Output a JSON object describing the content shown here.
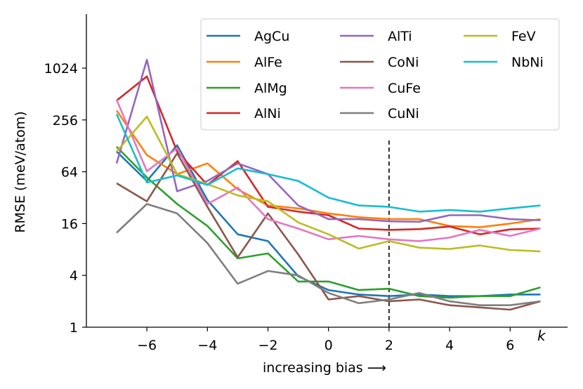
{
  "chart_data": {
    "type": "line",
    "xlabel": "increasing bias ⟶",
    "ylabel": "RMSE (meV/atom)",
    "x_annotation": "k",
    "yscale": "log2",
    "xlim": [
      -8,
      8
    ],
    "ylim": [
      1,
      4096
    ],
    "xticks": [
      -6,
      -4,
      -2,
      0,
      2,
      4,
      6
    ],
    "xtick_labels": [
      "−6",
      "−4",
      "−2",
      "0",
      "2",
      "4",
      "6"
    ],
    "yticks": [
      1,
      4,
      16,
      64,
      256,
      1024
    ],
    "ytick_labels": [
      "1",
      "4",
      "16",
      "64",
      "256",
      "1024"
    ],
    "vline_x": 2,
    "legend_position": "top-right",
    "x": [
      -7,
      -6,
      -5,
      -4,
      -3,
      -2,
      -1,
      0,
      1,
      2,
      3,
      4,
      5,
      6,
      7
    ],
    "series": [
      {
        "name": "AgCu",
        "color": "#1f77b4",
        "values": [
          110,
          50,
          130,
          30,
          12,
          10,
          3.9,
          2.7,
          2.4,
          2.3,
          2.4,
          2.3,
          2.3,
          2.4,
          2.4
        ]
      },
      {
        "name": "AlFe",
        "color": "#ff7f0e",
        "values": [
          330,
          100,
          60,
          80,
          40,
          26,
          24,
          21,
          19,
          18,
          18,
          15,
          14.5,
          16,
          18
        ]
      },
      {
        "name": "AlMg",
        "color": "#2ca02c",
        "values": [
          125,
          55,
          27,
          15,
          6.3,
          7.2,
          3.4,
          3.4,
          2.7,
          2.8,
          2.3,
          2.2,
          2.3,
          2.3,
          2.9
        ]
      },
      {
        "name": "AlNi",
        "color": "#d62728",
        "values": [
          430,
          820,
          110,
          45,
          85,
          25,
          22,
          20,
          14,
          13.5,
          13.8,
          14.8,
          12,
          13.7,
          14
        ]
      },
      {
        "name": "AlTi",
        "color": "#9467bd",
        "values": [
          80,
          1280,
          38,
          50,
          80,
          60,
          26,
          18,
          18,
          17,
          16.8,
          20,
          20,
          18,
          17.5
        ]
      },
      {
        "name": "CoNi",
        "color": "#8c564b",
        "values": [
          47,
          29,
          105,
          25,
          6.5,
          21,
          7,
          2.1,
          2.3,
          2.0,
          2.1,
          1.8,
          1.7,
          1.6,
          2.0
        ]
      },
      {
        "name": "CuFe",
        "color": "#e377c2",
        "values": [
          440,
          65,
          120,
          27,
          42,
          18,
          14,
          10.5,
          11.5,
          10.5,
          10,
          11,
          13.5,
          11.5,
          14
        ]
      },
      {
        "name": "CuNi",
        "color": "#7f7f7f",
        "values": [
          12.5,
          27,
          21,
          9.5,
          3.2,
          4.5,
          4.0,
          2.5,
          1.9,
          2.1,
          2.5,
          2.0,
          1.8,
          1.8,
          2.0
        ]
      },
      {
        "name": "FeV",
        "color": "#bcbd22",
        "values": [
          110,
          280,
          60,
          46,
          34,
          29,
          16.5,
          12,
          8.2,
          10,
          8.4,
          8.1,
          8.9,
          7.9,
          7.6
        ]
      },
      {
        "name": "NbNi",
        "color": "#17becf",
        "values": [
          300,
          48,
          58,
          45,
          70,
          60,
          50,
          32,
          26,
          25,
          22,
          23,
          22,
          24,
          26
        ]
      }
    ]
  }
}
